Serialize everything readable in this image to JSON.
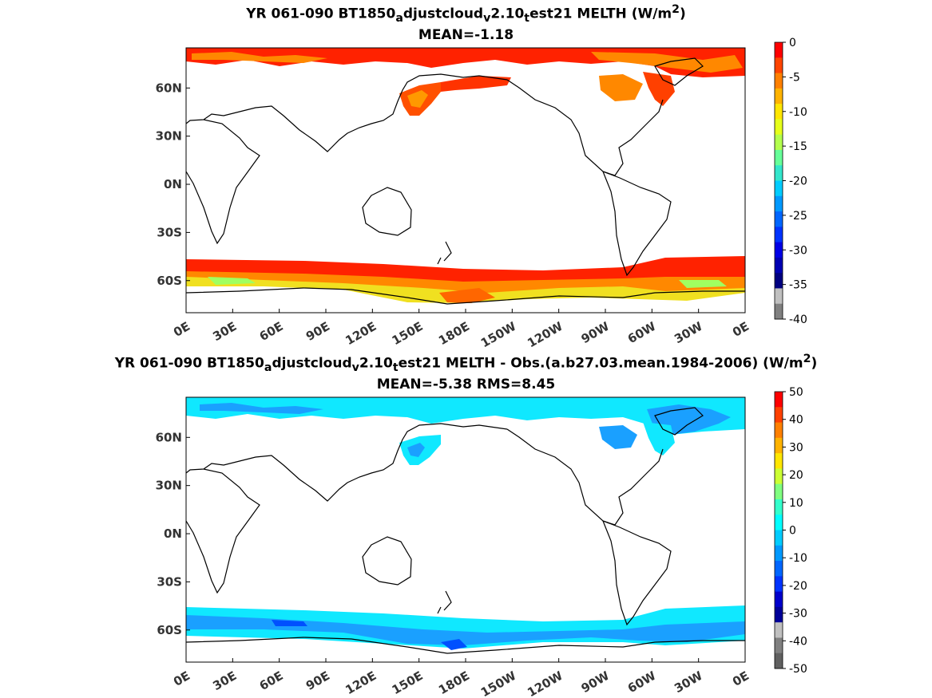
{
  "panels": [
    {
      "title_pre": "YR 061-090 BT1850",
      "title_sub1": "a",
      "title_mid1": "djustcloud",
      "title_sub2": "v",
      "title_mid2": "2.10",
      "title_sub3": "t",
      "title_post": "est21  MELTH (W/m",
      "title_sup": "2",
      "title_end": ")",
      "stats": "MEAN=-1.18",
      "lon_ticks": [
        "0E",
        "30E",
        "60E",
        "90E",
        "120E",
        "150E",
        "180E",
        "150W",
        "120W",
        "90W",
        "60W",
        "30W",
        "0E"
      ],
      "lat_ticks": [
        "60N",
        "30N",
        "0N",
        "30S",
        "60S"
      ],
      "colorbar": {
        "ticks": [
          "0",
          "-5",
          "-10",
          "-15",
          "-20",
          "-25",
          "-30",
          "-35",
          "-40"
        ],
        "colors": [
          "#ff0000",
          "#ff4400",
          "#ff8000",
          "#ffb300",
          "#ffe600",
          "#e6ff1a",
          "#b3ff4d",
          "#66ff99",
          "#33e6cc",
          "#00ccff",
          "#0099ff",
          "#0066ff",
          "#0033ff",
          "#0000e6",
          "#0000b3",
          "#000080",
          "#c0c0c0",
          "#808080"
        ]
      }
    },
    {
      "title_pre": "YR 061-090 BT1850",
      "title_sub1": "a",
      "title_mid1": "djustcloud",
      "title_sub2": "v",
      "title_mid2": "2.10",
      "title_sub3": "t",
      "title_post": "est21 MELTH - Obs.(a.b27.03.mean.1984-2006) (W/m",
      "title_sup": "2",
      "title_end": ")",
      "stats": "MEAN=-5.38 RMS=8.45",
      "lon_ticks": [
        "0E",
        "30E",
        "60E",
        "90E",
        "120E",
        "150E",
        "180E",
        "150W",
        "120W",
        "90W",
        "60W",
        "30W",
        "0E"
      ],
      "lat_ticks": [
        "60N",
        "30N",
        "0N",
        "30S",
        "60S"
      ],
      "colorbar": {
        "ticks": [
          "50",
          "40",
          "30",
          "20",
          "10",
          "0",
          "-10",
          "-20",
          "-30",
          "-40",
          "-50"
        ],
        "colors": [
          "#ff0000",
          "#ff4000",
          "#ff8000",
          "#ffb300",
          "#ffe600",
          "#ccff33",
          "#80ff80",
          "#33ffcc",
          "#00ffff",
          "#00ccff",
          "#0099ff",
          "#0066ff",
          "#0033ff",
          "#0000cc",
          "#000099",
          "#c0c0c0",
          "#808080",
          "#606060"
        ]
      }
    }
  ],
  "colors": {
    "land_outline": "#000000",
    "top_fill_main": "#ff2200",
    "top_fill_mid": "#ff8800",
    "top_fill_yellow": "#f0e020",
    "top_fill_green": "#a0ff60",
    "bottom_fill_cyan": "#10e8ff",
    "bottom_fill_blue": "#1aa0ff",
    "bottom_fill_dark": "#0050ff"
  }
}
